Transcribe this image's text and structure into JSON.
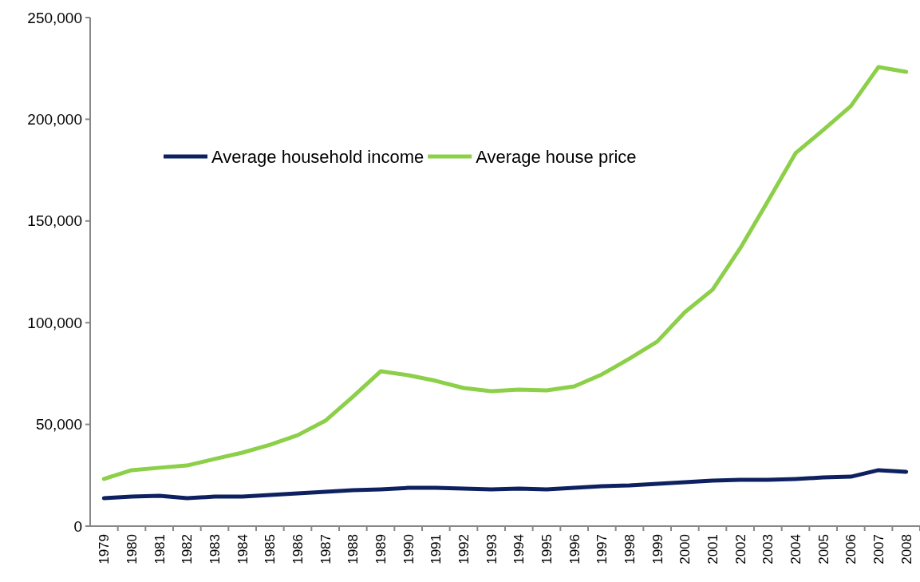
{
  "chart_data": {
    "type": "line",
    "categories": [
      "1979",
      "1980",
      "1981",
      "1982",
      "1983",
      "1984",
      "1985",
      "1986",
      "1987",
      "1988",
      "1989",
      "1990",
      "1991",
      "1992",
      "1993",
      "1994",
      "1995",
      "1996",
      "1997",
      "1998",
      "1999",
      "2000",
      "2001",
      "2002",
      "2003",
      "2004",
      "2005",
      "2006",
      "2007",
      "2008"
    ],
    "series": [
      {
        "name": "Average household income",
        "color": "#0d2160",
        "values": [
          13700,
          14500,
          14900,
          13700,
          14500,
          14500,
          15300,
          16100,
          16900,
          17700,
          18100,
          18800,
          18800,
          18400,
          18100,
          18400,
          18100,
          18800,
          19600,
          20000,
          20800,
          21600,
          22400,
          22800,
          22800,
          23200,
          23900,
          24300,
          27500,
          26700
        ]
      },
      {
        "name": "Average house price",
        "color": "#8ccf48",
        "values": [
          23200,
          27500,
          28700,
          29800,
          33000,
          36100,
          40000,
          44700,
          51800,
          63600,
          76100,
          74200,
          71400,
          67900,
          66300,
          67100,
          66700,
          68700,
          74600,
          82400,
          90700,
          105200,
          116200,
          136600,
          159700,
          183300,
          194700,
          206500,
          225700,
          223300
        ]
      }
    ],
    "ylim": [
      0,
      250000
    ],
    "yticks": [
      {
        "value": 0,
        "label": "0"
      },
      {
        "value": 50000,
        "label": "50,000"
      },
      {
        "value": 100000,
        "label": "100,000"
      },
      {
        "value": 150000,
        "label": "150,000"
      },
      {
        "value": 200000,
        "label": "200,000"
      },
      {
        "value": 250000,
        "label": "250,000"
      }
    ],
    "legend": "top left",
    "grid": false,
    "marker": "none",
    "line_style": "solid"
  }
}
